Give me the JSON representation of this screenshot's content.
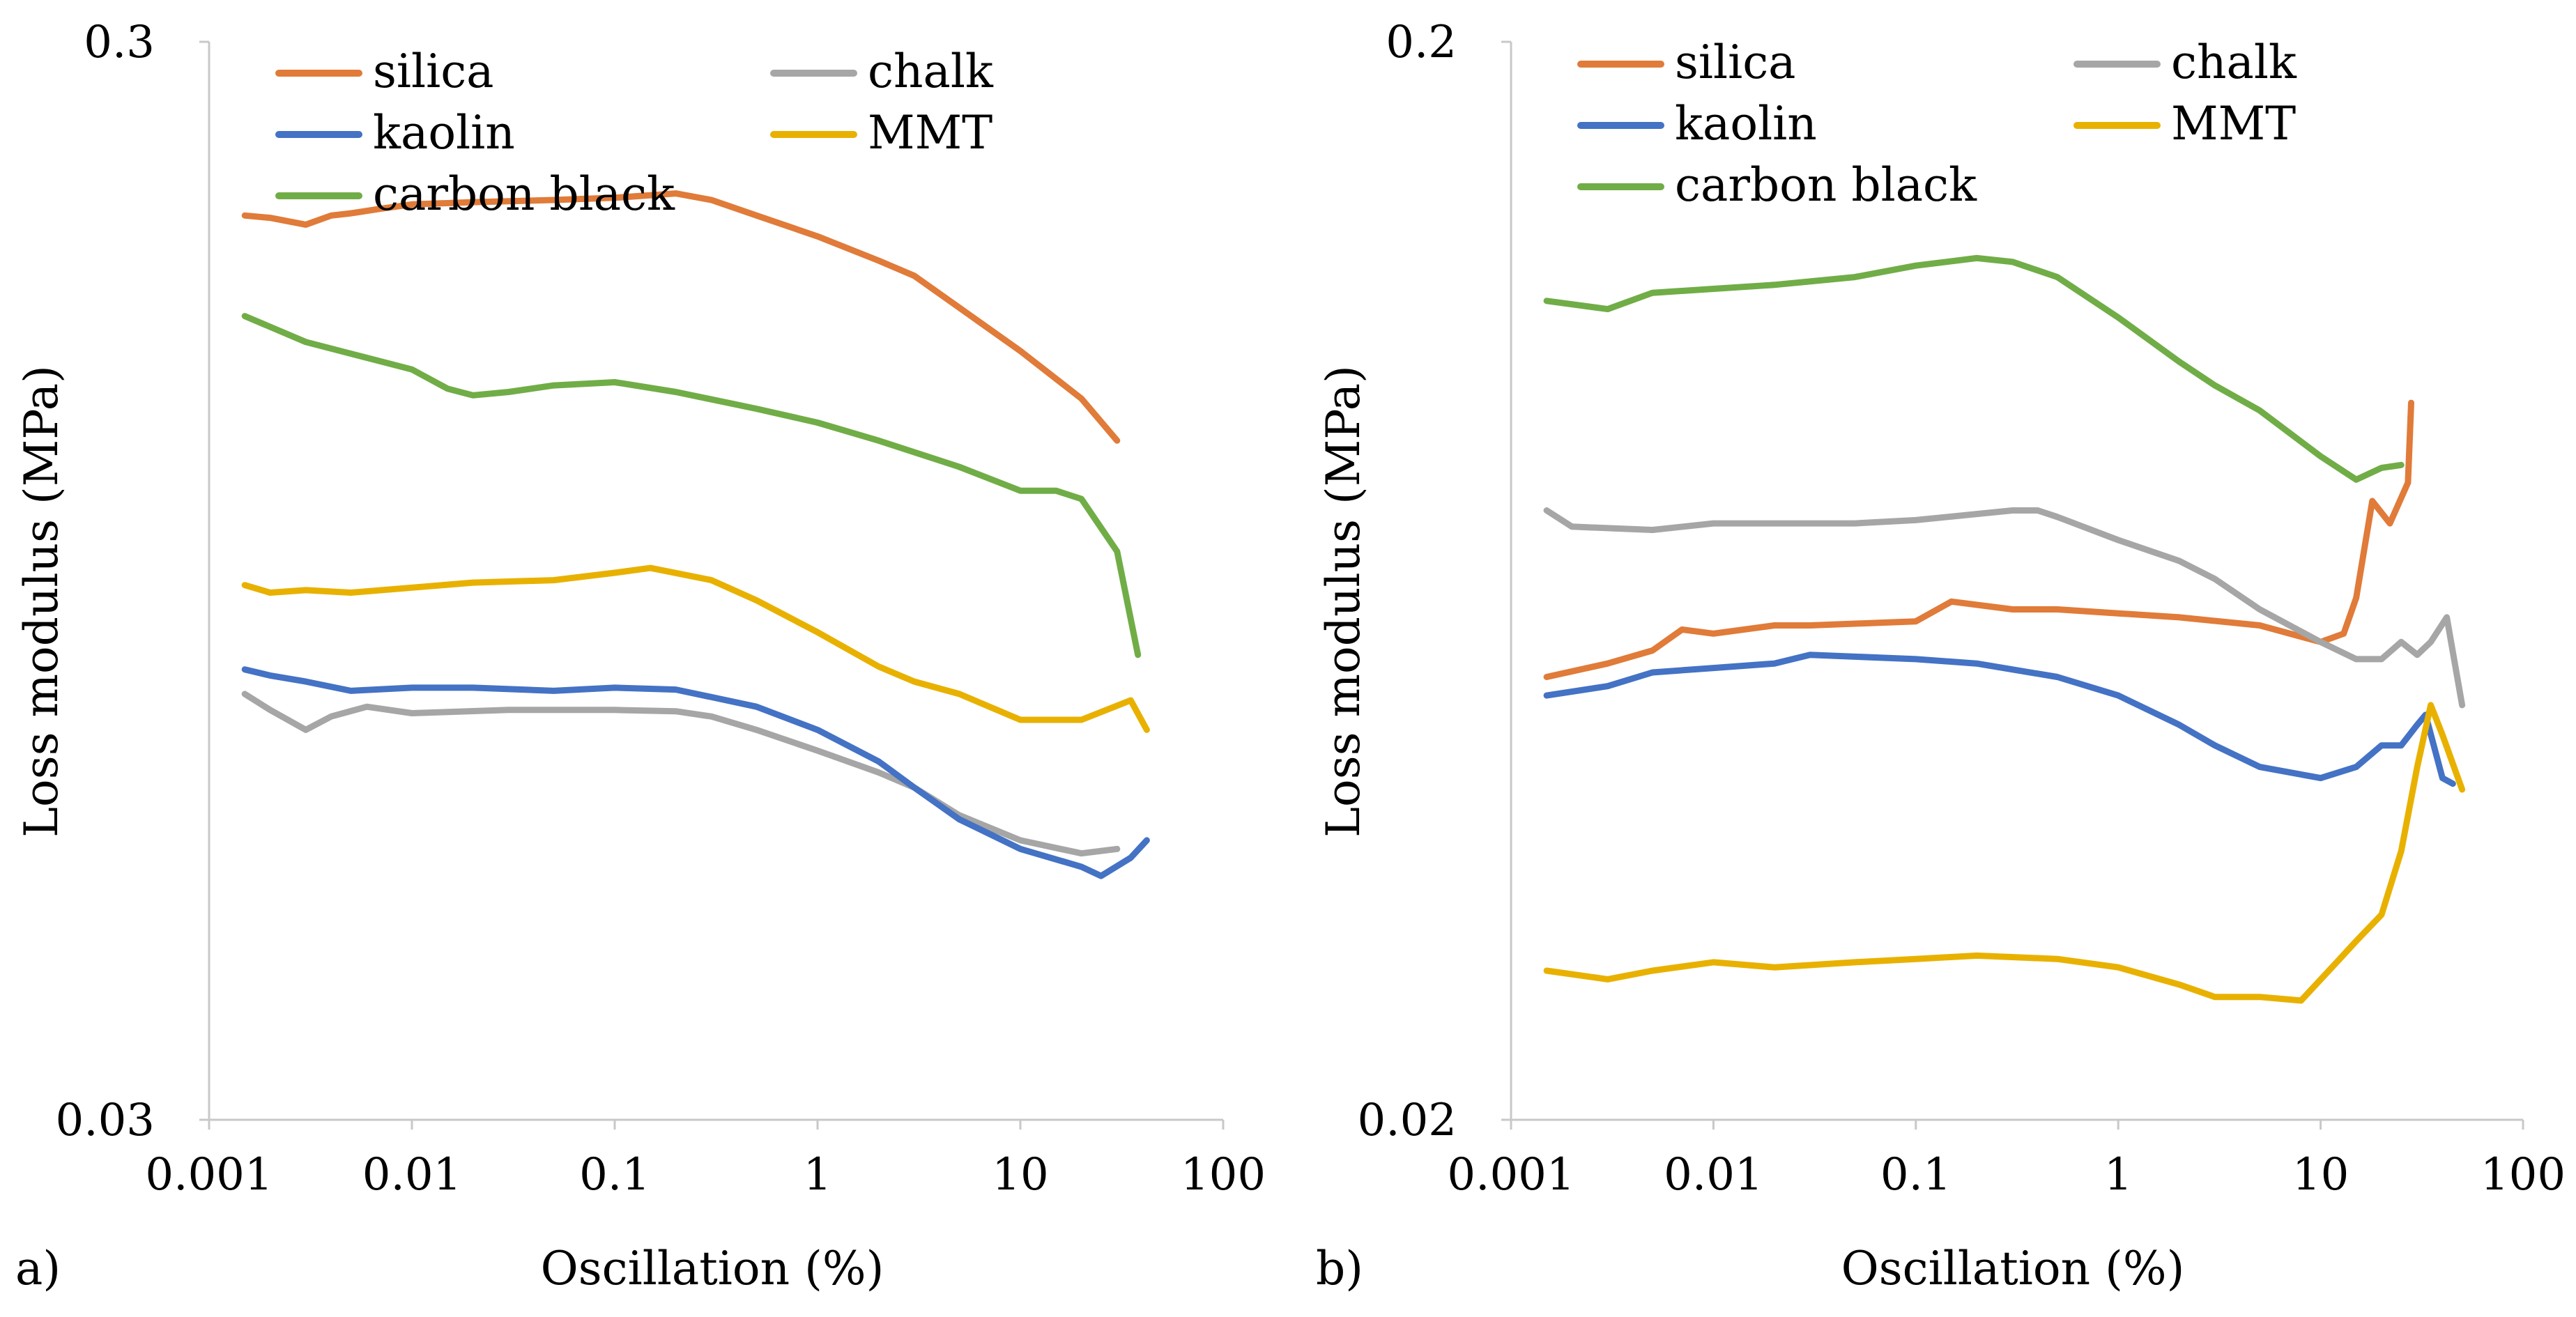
{
  "chart_data": [
    {
      "type": "line",
      "panel_label": "a)",
      "xlabel": "Oscillation (%)",
      "ylabel": "Loss modulus (MPa)",
      "x_scale": "log",
      "y_scale": "log",
      "xlim": [
        0.001,
        100
      ],
      "ylim": [
        0.03,
        0.3
      ],
      "x_ticks": [
        {
          "value": 0.001,
          "label": "0.001"
        },
        {
          "value": 0.01,
          "label": "0.01"
        },
        {
          "value": 0.1,
          "label": "0.1"
        },
        {
          "value": 1,
          "label": "1"
        },
        {
          "value": 10,
          "label": "10"
        },
        {
          "value": 100,
          "label": "100"
        }
      ],
      "y_ticks": [
        {
          "value": 0.03,
          "label": "0.03"
        },
        {
          "value": 0.3,
          "label": "0.3"
        }
      ],
      "legend_position": "top-left",
      "series": [
        {
          "name": "silica",
          "color": "#E07B39",
          "points": [
            [
              0.0015,
              0.207
            ],
            [
              0.002,
              0.206
            ],
            [
              0.003,
              0.203
            ],
            [
              0.004,
              0.207
            ],
            [
              0.005,
              0.208
            ],
            [
              0.007,
              0.21
            ],
            [
              0.01,
              0.212
            ],
            [
              0.02,
              0.213
            ],
            [
              0.05,
              0.214
            ],
            [
              0.1,
              0.215
            ],
            [
              0.2,
              0.217
            ],
            [
              0.3,
              0.214
            ],
            [
              0.5,
              0.207
            ],
            [
              1,
              0.198
            ],
            [
              2,
              0.188
            ],
            [
              3,
              0.182
            ],
            [
              5,
              0.17
            ],
            [
              10,
              0.155
            ],
            [
              20,
              0.14
            ],
            [
              30,
              0.128
            ]
          ]
        },
        {
          "name": "chalk",
          "color": "#A6A6A6",
          "points": [
            [
              0.0015,
              0.0745
            ],
            [
              0.002,
              0.072
            ],
            [
              0.003,
              0.069
            ],
            [
              0.004,
              0.071
            ],
            [
              0.006,
              0.0725
            ],
            [
              0.01,
              0.0715
            ],
            [
              0.03,
              0.072
            ],
            [
              0.1,
              0.072
            ],
            [
              0.2,
              0.0718
            ],
            [
              0.3,
              0.071
            ],
            [
              0.5,
              0.069
            ],
            [
              1,
              0.066
            ],
            [
              2,
              0.063
            ],
            [
              3,
              0.061
            ],
            [
              5,
              0.0575
            ],
            [
              10,
              0.0545
            ],
            [
              20,
              0.053
            ],
            [
              30,
              0.0535
            ]
          ]
        },
        {
          "name": "kaolin",
          "color": "#4472C4",
          "points": [
            [
              0.0015,
              0.0785
            ],
            [
              0.002,
              0.0775
            ],
            [
              0.003,
              0.0765
            ],
            [
              0.005,
              0.075
            ],
            [
              0.01,
              0.0755
            ],
            [
              0.02,
              0.0755
            ],
            [
              0.05,
              0.075
            ],
            [
              0.1,
              0.0755
            ],
            [
              0.2,
              0.0752
            ],
            [
              0.3,
              0.074
            ],
            [
              0.5,
              0.0725
            ],
            [
              1,
              0.069
            ],
            [
              2,
              0.0645
            ],
            [
              3,
              0.061
            ],
            [
              5,
              0.057
            ],
            [
              10,
              0.0535
            ],
            [
              20,
              0.0515
            ],
            [
              25,
              0.0505
            ],
            [
              35,
              0.0525
            ],
            [
              42,
              0.0545
            ]
          ]
        },
        {
          "name": "MMT",
          "color": "#E8B100",
          "points": [
            [
              0.0015,
              0.094
            ],
            [
              0.002,
              0.0925
            ],
            [
              0.003,
              0.093
            ],
            [
              0.005,
              0.0925
            ],
            [
              0.01,
              0.0935
            ],
            [
              0.02,
              0.0945
            ],
            [
              0.05,
              0.095
            ],
            [
              0.1,
              0.0965
            ],
            [
              0.15,
              0.0975
            ],
            [
              0.3,
              0.095
            ],
            [
              0.5,
              0.091
            ],
            [
              1,
              0.085
            ],
            [
              2,
              0.079
            ],
            [
              3,
              0.0765
            ],
            [
              5,
              0.0745
            ],
            [
              10,
              0.0705
            ],
            [
              20,
              0.0705
            ],
            [
              35,
              0.0735
            ],
            [
              42,
              0.069
            ]
          ]
        },
        {
          "name": "carbon black",
          "color": "#70AD47",
          "points": [
            [
              0.0015,
              0.167
            ],
            [
              0.003,
              0.158
            ],
            [
              0.01,
              0.149
            ],
            [
              0.015,
              0.143
            ],
            [
              0.02,
              0.141
            ],
            [
              0.03,
              0.142
            ],
            [
              0.05,
              0.144
            ],
            [
              0.1,
              0.145
            ],
            [
              0.2,
              0.142
            ],
            [
              0.5,
              0.137
            ],
            [
              1,
              0.133
            ],
            [
              2,
              0.128
            ],
            [
              5,
              0.121
            ],
            [
              10,
              0.115
            ],
            [
              15,
              0.115
            ],
            [
              20,
              0.113
            ],
            [
              30,
              0.101
            ],
            [
              38,
              0.081
            ]
          ]
        }
      ]
    },
    {
      "type": "line",
      "panel_label": "b)",
      "xlabel": "Oscillation (%)",
      "ylabel": "Loss modulus (MPa)",
      "x_scale": "log",
      "y_scale": "log",
      "xlim": [
        0.001,
        100
      ],
      "ylim": [
        0.02,
        0.2
      ],
      "x_ticks": [
        {
          "value": 0.001,
          "label": "0.001"
        },
        {
          "value": 0.01,
          "label": "0.01"
        },
        {
          "value": 0.1,
          "label": "0.1"
        },
        {
          "value": 1,
          "label": "1"
        },
        {
          "value": 10,
          "label": "10"
        },
        {
          "value": 100,
          "label": "100"
        }
      ],
      "y_ticks": [
        {
          "value": 0.02,
          "label": "0.02"
        },
        {
          "value": 0.2,
          "label": "0.2"
        }
      ],
      "legend_position": "top-left",
      "series": [
        {
          "name": "silica",
          "color": "#E07B39",
          "points": [
            [
              0.0015,
              0.0515
            ],
            [
              0.003,
              0.053
            ],
            [
              0.005,
              0.0545
            ],
            [
              0.007,
              0.057
            ],
            [
              0.01,
              0.0565
            ],
            [
              0.02,
              0.0575
            ],
            [
              0.03,
              0.0575
            ],
            [
              0.1,
              0.058
            ],
            [
              0.15,
              0.0605
            ],
            [
              0.3,
              0.0595
            ],
            [
              0.5,
              0.0595
            ],
            [
              1,
              0.059
            ],
            [
              2,
              0.0585
            ],
            [
              5,
              0.0575
            ],
            [
              10,
              0.0555
            ],
            [
              13,
              0.0565
            ],
            [
              15,
              0.061
            ],
            [
              18,
              0.075
            ],
            [
              22,
              0.0715
            ],
            [
              27,
              0.078
            ],
            [
              28,
              0.0925
            ]
          ]
        },
        {
          "name": "chalk",
          "color": "#A6A6A6",
          "points": [
            [
              0.0015,
              0.0735
            ],
            [
              0.002,
              0.071
            ],
            [
              0.005,
              0.0705
            ],
            [
              0.01,
              0.0715
            ],
            [
              0.05,
              0.0715
            ],
            [
              0.1,
              0.072
            ],
            [
              0.3,
              0.0735
            ],
            [
              0.4,
              0.0735
            ],
            [
              0.5,
              0.0725
            ],
            [
              1,
              0.069
            ],
            [
              2,
              0.066
            ],
            [
              3,
              0.0635
            ],
            [
              5,
              0.0595
            ],
            [
              10,
              0.0555
            ],
            [
              15,
              0.0535
            ],
            [
              20,
              0.0535
            ],
            [
              25,
              0.0555
            ],
            [
              30,
              0.054
            ],
            [
              35,
              0.0555
            ],
            [
              42,
              0.0585
            ],
            [
              50,
              0.0485
            ]
          ]
        },
        {
          "name": "kaolin",
          "color": "#4472C4",
          "points": [
            [
              0.0015,
              0.0495
            ],
            [
              0.003,
              0.0505
            ],
            [
              0.005,
              0.052
            ],
            [
              0.01,
              0.0525
            ],
            [
              0.02,
              0.053
            ],
            [
              0.03,
              0.054
            ],
            [
              0.1,
              0.0535
            ],
            [
              0.2,
              0.053
            ],
            [
              0.5,
              0.0515
            ],
            [
              1,
              0.0495
            ],
            [
              2,
              0.0465
            ],
            [
              3,
              0.0445
            ],
            [
              5,
              0.0425
            ],
            [
              10,
              0.0415
            ],
            [
              15,
              0.0425
            ],
            [
              20,
              0.0445
            ],
            [
              25,
              0.0445
            ],
            [
              30,
              0.0465
            ],
            [
              33,
              0.0475
            ],
            [
              40,
              0.0415
            ],
            [
              45,
              0.041
            ]
          ]
        },
        {
          "name": "MMT",
          "color": "#E8B100",
          "points": [
            [
              0.0015,
              0.0275
            ],
            [
              0.003,
              0.027
            ],
            [
              0.005,
              0.0275
            ],
            [
              0.01,
              0.028
            ],
            [
              0.02,
              0.0277
            ],
            [
              0.05,
              0.028
            ],
            [
              0.1,
              0.0282
            ],
            [
              0.2,
              0.0284
            ],
            [
              0.5,
              0.0282
            ],
            [
              1,
              0.0277
            ],
            [
              2,
              0.0267
            ],
            [
              3,
              0.026
            ],
            [
              5,
              0.026
            ],
            [
              8,
              0.0258
            ],
            [
              12,
              0.028
            ],
            [
              15,
              0.0293
            ],
            [
              20,
              0.031
            ],
            [
              25,
              0.0355
            ],
            [
              30,
              0.0425
            ],
            [
              35,
              0.0485
            ],
            [
              40,
              0.0455
            ],
            [
              50,
              0.0405
            ]
          ]
        },
        {
          "name": "carbon black",
          "color": "#70AD47",
          "points": [
            [
              0.0015,
              0.115
            ],
            [
              0.003,
              0.113
            ],
            [
              0.005,
              0.117
            ],
            [
              0.01,
              0.118
            ],
            [
              0.02,
              0.119
            ],
            [
              0.05,
              0.121
            ],
            [
              0.1,
              0.124
            ],
            [
              0.2,
              0.126
            ],
            [
              0.3,
              0.125
            ],
            [
              0.5,
              0.121
            ],
            [
              1,
              0.111
            ],
            [
              2,
              0.101
            ],
            [
              3,
              0.096
            ],
            [
              5,
              0.091
            ],
            [
              10,
              0.0825
            ],
            [
              15,
              0.0785
            ],
            [
              20,
              0.0805
            ],
            [
              25,
              0.081
            ]
          ]
        }
      ]
    }
  ]
}
